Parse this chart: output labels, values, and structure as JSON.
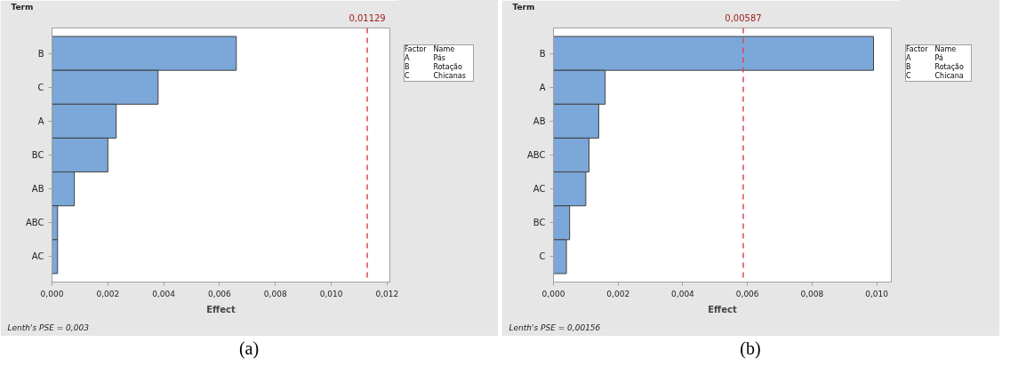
{
  "chart_data": [
    {
      "type": "bar",
      "orientation": "horizontal",
      "ylabel": "Term",
      "xlabel": "Effect",
      "color": "#7ba7d9",
      "categories": [
        "B",
        "C",
        "A",
        "BC",
        "AB",
        "ABC",
        "AC"
      ],
      "values": [
        0.0066,
        0.0038,
        0.0023,
        0.002,
        0.0008,
        0.0002,
        0.0002
      ],
      "xlim": [
        0,
        0.0121
      ],
      "xticks": [
        {
          "value": 0,
          "label": "0,000"
        },
        {
          "value": 0.002,
          "label": "0,002"
        },
        {
          "value": 0.004,
          "label": "0,004"
        },
        {
          "value": 0.006,
          "label": "0,006"
        },
        {
          "value": 0.008,
          "label": "0,008"
        },
        {
          "value": 0.01,
          "label": "0,010"
        },
        {
          "value": 0.012,
          "label": "0,012"
        }
      ],
      "ref_lines": [
        {
          "axis": "x",
          "value": 0.01129,
          "label": "0,01129",
          "color": "#e0474c",
          "line_style": "dashed"
        }
      ],
      "grid": false,
      "annotations": [
        "Factor  Name",
        "A  Pás",
        "B  Rotação",
        "C  Chicanas",
        "Lenth's PSE = 0,003",
        "(a)"
      ]
    },
    {
      "type": "bar",
      "orientation": "horizontal",
      "ylabel": "Term",
      "xlabel": "Effect",
      "color": "#7ba7d9",
      "categories": [
        "B",
        "A",
        "AB",
        "ABC",
        "AC",
        "BC",
        "C"
      ],
      "values": [
        0.0099,
        0.0016,
        0.0014,
        0.0011,
        0.001,
        0.0005,
        0.0004
      ],
      "xlim": [
        0,
        0.01045
      ],
      "xticks": [
        {
          "value": 0,
          "label": "0,000"
        },
        {
          "value": 0.002,
          "label": "0,002"
        },
        {
          "value": 0.004,
          "label": "0,004"
        },
        {
          "value": 0.006,
          "label": "0,006"
        },
        {
          "value": 0.008,
          "label": "0,008"
        },
        {
          "value": 0.01,
          "label": "0,010"
        }
      ],
      "ref_lines": [
        {
          "axis": "x",
          "value": 0.00587,
          "label": "0,00587",
          "color": "#e0474c",
          "line_style": "dashed"
        }
      ],
      "grid": false,
      "annotations": [
        "Factor  Name",
        "A  Pá",
        "B  Rotação",
        "C  Chicana",
        "Lenth's PSE = 0,00156",
        "(b)"
      ]
    }
  ]
}
